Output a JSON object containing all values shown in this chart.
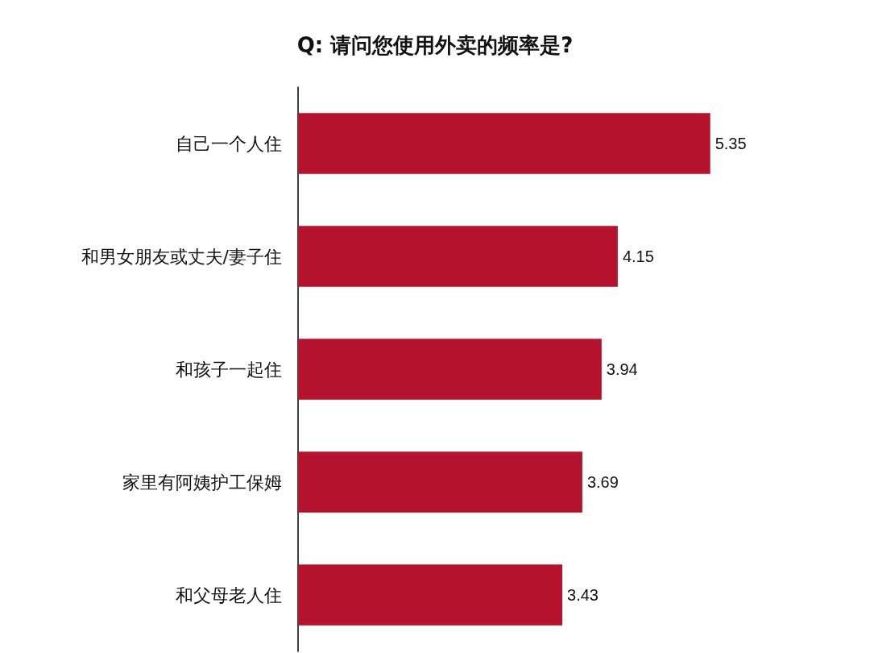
{
  "chart_data": {
    "type": "bar",
    "orientation": "horizontal",
    "title": "Q: 请问您使用外卖的频率是?",
    "categories": [
      "自己一个人住",
      "和男女朋友或丈夫/妻子住",
      "和孩子一起住",
      "家里有阿姨护工保姆",
      "和父母老人住"
    ],
    "values": [
      5.35,
      4.15,
      3.94,
      3.69,
      3.43
    ],
    "color": "#b5122e",
    "data_labels": true
  }
}
